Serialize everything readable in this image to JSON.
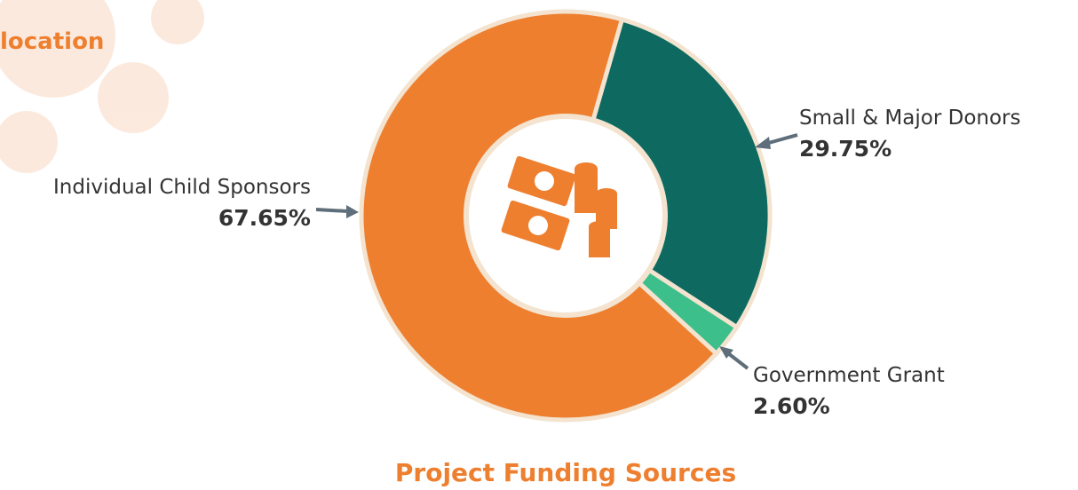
{
  "page": {
    "fragment": "location"
  },
  "chart_data": {
    "type": "pie",
    "title": "Project Funding Sources",
    "categories": [
      "Small & Major Donors",
      "Government Grant",
      "Individual Child Sponsors"
    ],
    "values": [
      29.75,
      2.6,
      67.65
    ],
    "value_labels": [
      "29.75%",
      "2.60%",
      "67.65%"
    ],
    "colors": [
      "#0e6a61",
      "#3cbf8b",
      "#ee7f2f"
    ]
  }
}
